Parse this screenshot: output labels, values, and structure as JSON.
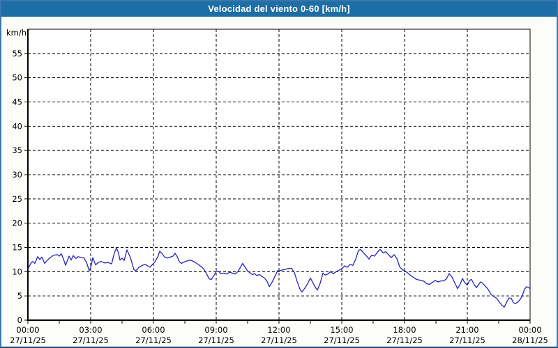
{
  "window": {
    "title": "Velocidad del viento 0-60 [km/h]"
  },
  "colors": {
    "titlebar_bg": "#1C6EA4",
    "titlebar_text": "#FFFFFF",
    "page_border": "#3A77AD",
    "page_bg": "#FCFCF9",
    "plot_bg": "#FFFFFF",
    "grid": "#000000",
    "axis": "#000000",
    "tick_label": "#000000",
    "series_line": "#2323BE"
  },
  "chart_data": {
    "type": "line",
    "title": "Velocidad del viento 0-60 [km/h]",
    "xlabel": "",
    "ylabel": "km/h",
    "ylim": [
      0,
      60
    ],
    "y_ticks": [
      0,
      5,
      10,
      15,
      20,
      25,
      30,
      35,
      40,
      45,
      50,
      55
    ],
    "x_range_minutes": [
      0,
      1440
    ],
    "x_minor_tick_every_minutes": 90,
    "grid": "dashed-both-axes",
    "legend": "none",
    "x_major_ticks": [
      {
        "minutes": 0,
        "time": "00:00",
        "date": "27/11/25"
      },
      {
        "minutes": 180,
        "time": "03:00",
        "date": "27/11/25"
      },
      {
        "minutes": 360,
        "time": "06:00",
        "date": "27/11/25"
      },
      {
        "minutes": 540,
        "time": "09:00",
        "date": "27/11/25"
      },
      {
        "minutes": 720,
        "time": "12:00",
        "date": "27/11/25"
      },
      {
        "minutes": 900,
        "time": "15:00",
        "date": "27/11/25"
      },
      {
        "minutes": 1080,
        "time": "18:00",
        "date": "27/11/25"
      },
      {
        "minutes": 1260,
        "time": "21:00",
        "date": "27/11/25"
      },
      {
        "minutes": 1440,
        "time": "00:00",
        "date": "28/11/25"
      }
    ],
    "series": [
      {
        "name": "Velocidad del viento",
        "unit": "km/h",
        "points": [
          [
            0,
            10.5
          ],
          [
            8,
            11.7
          ],
          [
            14,
            12.1
          ],
          [
            20,
            11.7
          ],
          [
            28,
            13.1
          ],
          [
            34,
            12.5
          ],
          [
            40,
            13.0
          ],
          [
            48,
            11.7
          ],
          [
            56,
            12.4
          ],
          [
            64,
            12.9
          ],
          [
            74,
            13.4
          ],
          [
            84,
            13.5
          ],
          [
            90,
            13.2
          ],
          [
            96,
            13.7
          ],
          [
            102,
            12.6
          ],
          [
            108,
            11.3
          ],
          [
            118,
            13.2
          ],
          [
            124,
            12.4
          ],
          [
            130,
            13.3
          ],
          [
            138,
            12.7
          ],
          [
            144,
            13.1
          ],
          [
            152,
            12.9
          ],
          [
            160,
            12.9
          ],
          [
            168,
            11.9
          ],
          [
            176,
            10.2
          ],
          [
            180,
            10.8
          ],
          [
            186,
            12.9
          ],
          [
            194,
            11.4
          ],
          [
            202,
            11.9
          ],
          [
            210,
            12.1
          ],
          [
            220,
            11.8
          ],
          [
            230,
            11.9
          ],
          [
            240,
            11.6
          ],
          [
            248,
            13.9
          ],
          [
            254,
            14.9
          ],
          [
            260,
            13.8
          ],
          [
            264,
            12.4
          ],
          [
            270,
            12.8
          ],
          [
            276,
            12.3
          ],
          [
            284,
            14.5
          ],
          [
            294,
            12.9
          ],
          [
            304,
            10.4
          ],
          [
            310,
            10.2
          ],
          [
            318,
            10.9
          ],
          [
            328,
            11.3
          ],
          [
            336,
            11.5
          ],
          [
            344,
            11.2
          ],
          [
            350,
            10.9
          ],
          [
            356,
            11.4
          ],
          [
            364,
            12.0
          ],
          [
            372,
            13.0
          ],
          [
            378,
            14.2
          ],
          [
            384,
            13.8
          ],
          [
            392,
            13.0
          ],
          [
            400,
            12.8
          ],
          [
            408,
            13.0
          ],
          [
            416,
            13.2
          ],
          [
            422,
            13.8
          ],
          [
            428,
            13.1
          ],
          [
            434,
            12.1
          ],
          [
            440,
            11.7
          ],
          [
            448,
            12.0
          ],
          [
            456,
            12.2
          ],
          [
            464,
            12.4
          ],
          [
            472,
            12.2
          ],
          [
            480,
            11.9
          ],
          [
            488,
            11.5
          ],
          [
            496,
            11.1
          ],
          [
            504,
            10.6
          ],
          [
            512,
            9.6
          ],
          [
            520,
            8.5
          ],
          [
            526,
            8.4
          ],
          [
            534,
            9.3
          ],
          [
            540,
            10.0
          ],
          [
            546,
            10.1
          ],
          [
            554,
            9.6
          ],
          [
            562,
            9.7
          ],
          [
            570,
            9.5
          ],
          [
            578,
            9.9
          ],
          [
            586,
            9.7
          ],
          [
            594,
            9.5
          ],
          [
            602,
            10.0
          ],
          [
            610,
            11.0
          ],
          [
            616,
            11.7
          ],
          [
            622,
            11.0
          ],
          [
            630,
            10.1
          ],
          [
            636,
            9.8
          ],
          [
            644,
            9.4
          ],
          [
            650,
            9.6
          ],
          [
            656,
            9.2
          ],
          [
            664,
            9.4
          ],
          [
            670,
            9.1
          ],
          [
            678,
            8.7
          ],
          [
            686,
            8.0
          ],
          [
            692,
            6.9
          ],
          [
            700,
            7.8
          ],
          [
            708,
            9.0
          ],
          [
            716,
            10.2
          ],
          [
            724,
            10.2
          ],
          [
            732,
            10.4
          ],
          [
            740,
            10.5
          ],
          [
            748,
            10.7
          ],
          [
            756,
            10.7
          ],
          [
            764,
            9.8
          ],
          [
            772,
            8.0
          ],
          [
            780,
            6.4
          ],
          [
            786,
            5.8
          ],
          [
            794,
            6.6
          ],
          [
            802,
            7.5
          ],
          [
            810,
            8.7
          ],
          [
            818,
            7.6
          ],
          [
            824,
            6.8
          ],
          [
            830,
            6.2
          ],
          [
            838,
            7.6
          ],
          [
            846,
            9.7
          ],
          [
            852,
            9.3
          ],
          [
            860,
            9.5
          ],
          [
            868,
            10.0
          ],
          [
            876,
            9.6
          ],
          [
            884,
            10.0
          ],
          [
            892,
            10.3
          ],
          [
            900,
            10.6
          ],
          [
            908,
            11.2
          ],
          [
            916,
            10.9
          ],
          [
            924,
            11.5
          ],
          [
            932,
            11.3
          ],
          [
            940,
            12.6
          ],
          [
            948,
            14.4
          ],
          [
            954,
            14.6
          ],
          [
            962,
            13.9
          ],
          [
            970,
            13.3
          ],
          [
            978,
            12.6
          ],
          [
            986,
            13.4
          ],
          [
            994,
            13.2
          ],
          [
            1002,
            14.0
          ],
          [
            1010,
            14.6
          ],
          [
            1018,
            13.9
          ],
          [
            1026,
            14.1
          ],
          [
            1034,
            13.5
          ],
          [
            1042,
            12.9
          ],
          [
            1050,
            13.5
          ],
          [
            1058,
            12.7
          ],
          [
            1066,
            11.0
          ],
          [
            1074,
            10.4
          ],
          [
            1080,
            10.2
          ],
          [
            1088,
            9.8
          ],
          [
            1096,
            9.3
          ],
          [
            1104,
            8.9
          ],
          [
            1112,
            8.5
          ],
          [
            1120,
            8.3
          ],
          [
            1128,
            8.2
          ],
          [
            1136,
            8.0
          ],
          [
            1144,
            7.5
          ],
          [
            1152,
            7.4
          ],
          [
            1160,
            7.8
          ],
          [
            1168,
            8.2
          ],
          [
            1176,
            7.9
          ],
          [
            1184,
            8.1
          ],
          [
            1192,
            8.1
          ],
          [
            1200,
            8.5
          ],
          [
            1208,
            9.6
          ],
          [
            1216,
            8.9
          ],
          [
            1224,
            7.7
          ],
          [
            1232,
            6.5
          ],
          [
            1240,
            7.5
          ],
          [
            1246,
            8.6
          ],
          [
            1252,
            7.8
          ],
          [
            1260,
            7.2
          ],
          [
            1266,
            8.2
          ],
          [
            1272,
            8.4
          ],
          [
            1280,
            7.3
          ],
          [
            1286,
            6.7
          ],
          [
            1292,
            7.3
          ],
          [
            1298,
            7.9
          ],
          [
            1304,
            7.6
          ],
          [
            1312,
            7.0
          ],
          [
            1320,
            6.3
          ],
          [
            1328,
            5.3
          ],
          [
            1336,
            4.9
          ],
          [
            1344,
            4.5
          ],
          [
            1352,
            3.7
          ],
          [
            1360,
            3.0
          ],
          [
            1366,
            2.7
          ],
          [
            1374,
            3.9
          ],
          [
            1380,
            4.6
          ],
          [
            1386,
            4.5
          ],
          [
            1392,
            3.6
          ],
          [
            1398,
            3.4
          ],
          [
            1404,
            3.7
          ],
          [
            1412,
            4.3
          ],
          [
            1418,
            5.1
          ],
          [
            1424,
            6.4
          ],
          [
            1430,
            6.9
          ],
          [
            1436,
            6.7
          ],
          [
            1440,
            6.5
          ]
        ]
      }
    ]
  }
}
